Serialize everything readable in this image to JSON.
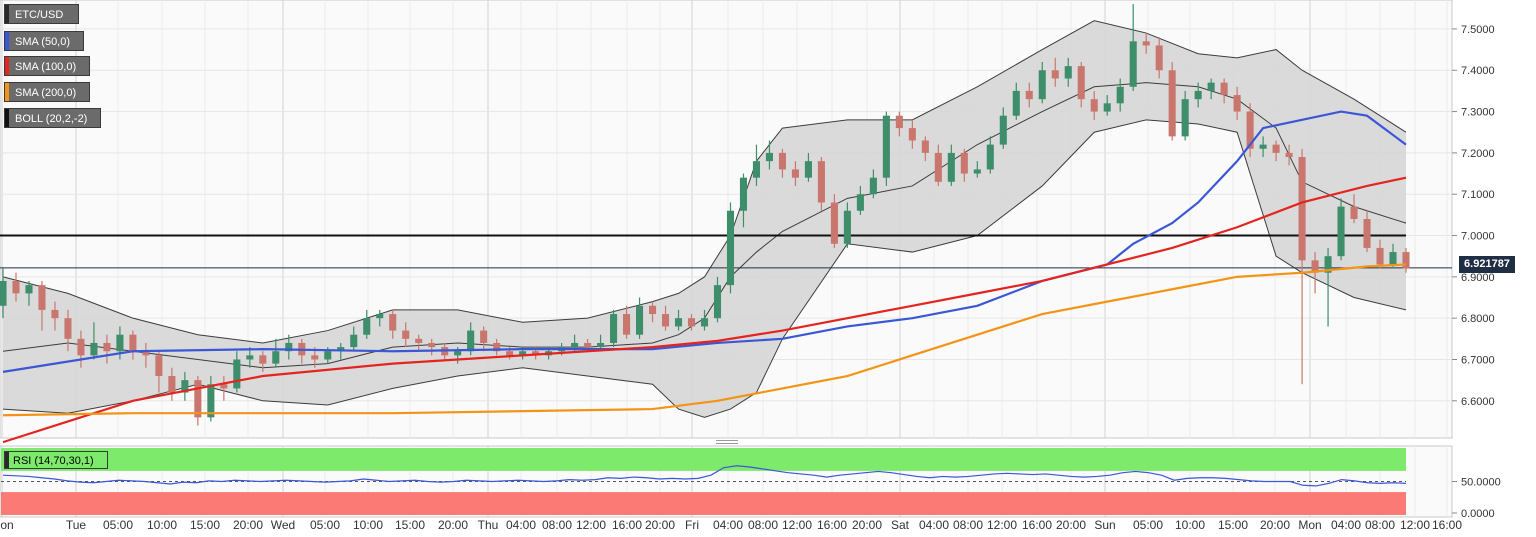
{
  "legend": [
    {
      "label": "ETC/USD",
      "color": "#6b6b6b"
    },
    {
      "label": "SMA (50,0)",
      "color": "#3a57d6"
    },
    {
      "label": "SMA (100,0)",
      "color": "#e52420"
    },
    {
      "label": "SMA (200,0)",
      "color": "#f39417"
    },
    {
      "label": "BOLL (20,2,-2)",
      "color": "#111111"
    }
  ],
  "rsi_label": "RSI (14,70,30,1)",
  "price_tag": "6.921787",
  "x_ticks": [
    "Mon",
    "Tue",
    "05:00",
    "10:00",
    "15:00",
    "20:00",
    "Wed",
    "05:00",
    "10:00",
    "15:00",
    "20:00",
    "Thu",
    "04:00",
    "08:00",
    "12:00",
    "16:00",
    "20:00",
    "Fri",
    "04:00",
    "08:00",
    "12:00",
    "16:00",
    "20:00",
    "Sat",
    "04:00",
    "08:00",
    "12:00",
    "16:00",
    "20:00",
    "Sun",
    "05:00",
    "10:00",
    "15:00",
    "20:00",
    "Mon",
    "04:00",
    "08:00",
    "12:00",
    "16:00"
  ],
  "chart_data": [
    {
      "type": "candlestick",
      "symbol": "ETC/USD",
      "y_ticks": [
        "6.6000",
        "6.7000",
        "6.8000",
        "6.9000",
        "7.0000",
        "7.1000",
        "7.2000",
        "7.3000",
        "7.4000",
        "7.5000"
      ],
      "ylim": [
        6.51,
        7.57
      ],
      "last_price": 6.921787,
      "horizontal_level": 7.0,
      "series": [
        {
          "name": "SMA (50,0)",
          "color": "#3a57d6",
          "x": [
            0,
            10,
            20,
            30,
            40,
            50,
            55,
            60,
            65,
            70,
            75,
            80,
            85,
            87,
            90,
            92,
            95,
            97,
            100,
            103,
            105,
            108
          ],
          "values": [
            6.67,
            6.72,
            6.725,
            6.72,
            6.725,
            6.725,
            6.74,
            6.75,
            6.78,
            6.8,
            6.83,
            6.89,
            6.93,
            6.98,
            7.03,
            7.08,
            7.18,
            7.26,
            7.28,
            7.3,
            7.29,
            7.22
          ]
        },
        {
          "name": "SMA (100,0)",
          "color": "#e52420",
          "x": [
            0,
            5,
            10,
            20,
            30,
            40,
            50,
            55,
            60,
            65,
            70,
            75,
            80,
            85,
            90,
            95,
            100,
            105,
            108
          ],
          "values": [
            6.5,
            6.55,
            6.6,
            6.66,
            6.69,
            6.71,
            6.73,
            6.745,
            6.77,
            6.8,
            6.83,
            6.86,
            6.89,
            6.93,
            6.97,
            7.02,
            7.08,
            7.12,
            7.14
          ]
        },
        {
          "name": "SMA (200,0)",
          "color": "#f39417",
          "x": [
            0,
            10,
            20,
            30,
            40,
            50,
            55,
            60,
            65,
            70,
            75,
            80,
            85,
            90,
            95,
            100,
            105,
            108
          ],
          "values": [
            6.565,
            6.57,
            6.57,
            6.57,
            6.575,
            6.58,
            6.6,
            6.63,
            6.66,
            6.71,
            6.76,
            6.81,
            6.84,
            6.87,
            6.9,
            6.91,
            6.925,
            6.93
          ]
        },
        {
          "name": "BOLL upper",
          "color": "#555555",
          "x": [
            0,
            5,
            10,
            15,
            20,
            25,
            30,
            35,
            40,
            45,
            50,
            52,
            54,
            56,
            58,
            60,
            65,
            70,
            75,
            80,
            84,
            88,
            92,
            95,
            98,
            100,
            104,
            108
          ],
          "values": [
            6.9,
            6.86,
            6.8,
            6.76,
            6.74,
            6.77,
            6.82,
            6.82,
            6.79,
            6.8,
            6.84,
            6.86,
            6.9,
            7.0,
            7.18,
            7.26,
            7.28,
            7.28,
            7.36,
            7.45,
            7.52,
            7.49,
            7.44,
            7.43,
            7.45,
            7.4,
            7.33,
            7.25
          ]
        },
        {
          "name": "BOLL middle",
          "color": "#555555",
          "x": [
            0,
            5,
            10,
            15,
            20,
            25,
            30,
            35,
            40,
            45,
            50,
            52,
            54,
            56,
            58,
            60,
            65,
            70,
            75,
            80,
            84,
            88,
            92,
            95,
            98,
            100,
            104,
            108
          ],
          "values": [
            6.72,
            6.74,
            6.72,
            6.7,
            6.68,
            6.69,
            6.73,
            6.74,
            6.73,
            6.73,
            6.74,
            6.76,
            6.8,
            6.9,
            6.96,
            7.01,
            7.09,
            7.12,
            7.22,
            7.3,
            7.36,
            7.37,
            7.36,
            7.33,
            7.26,
            7.13,
            7.07,
            7.03
          ]
        },
        {
          "name": "BOLL lower",
          "color": "#555555",
          "x": [
            0,
            5,
            10,
            15,
            20,
            25,
            30,
            35,
            40,
            45,
            50,
            52,
            54,
            56,
            58,
            60,
            65,
            70,
            75,
            80,
            84,
            88,
            92,
            95,
            98,
            100,
            104,
            108
          ],
          "values": [
            6.58,
            6.57,
            6.6,
            6.64,
            6.6,
            6.59,
            6.63,
            6.66,
            6.68,
            6.66,
            6.64,
            6.58,
            6.56,
            6.58,
            6.62,
            6.75,
            6.98,
            6.96,
            7.0,
            7.12,
            7.25,
            7.28,
            7.27,
            7.25,
            6.95,
            6.91,
            6.85,
            6.82
          ]
        }
      ],
      "candles": [
        [
          6.83,
          6.89,
          6.92,
          6.8
        ],
        [
          6.89,
          6.86,
          6.91,
          6.84
        ],
        [
          6.86,
          6.88,
          6.89,
          6.83
        ],
        [
          6.88,
          6.82,
          6.89,
          6.77
        ],
        [
          6.82,
          6.8,
          6.84,
          6.77
        ],
        [
          6.8,
          6.75,
          6.82,
          6.72
        ],
        [
          6.75,
          6.71,
          6.77,
          6.68
        ],
        [
          6.71,
          6.74,
          6.79,
          6.7
        ],
        [
          6.74,
          6.72,
          6.76,
          6.69
        ],
        [
          6.72,
          6.76,
          6.78,
          6.7
        ],
        [
          6.76,
          6.72,
          6.77,
          6.7
        ],
        [
          6.72,
          6.71,
          6.74,
          6.68
        ],
        [
          6.71,
          6.66,
          6.72,
          6.62
        ],
        [
          6.66,
          6.62,
          6.68,
          6.6
        ],
        [
          6.62,
          6.65,
          6.67,
          6.6
        ],
        [
          6.65,
          6.56,
          6.66,
          6.54
        ],
        [
          6.56,
          6.64,
          6.66,
          6.55
        ],
        [
          6.64,
          6.63,
          6.66,
          6.6
        ],
        [
          6.63,
          6.7,
          6.72,
          6.62
        ],
        [
          6.7,
          6.71,
          6.73,
          6.68
        ],
        [
          6.71,
          6.69,
          6.72,
          6.67
        ],
        [
          6.69,
          6.72,
          6.75,
          6.68
        ],
        [
          6.72,
          6.74,
          6.76,
          6.7
        ],
        [
          6.74,
          6.71,
          6.75,
          6.69
        ],
        [
          6.71,
          6.7,
          6.73,
          6.68
        ],
        [
          6.7,
          6.72,
          6.73,
          6.69
        ],
        [
          6.72,
          6.73,
          6.74,
          6.7
        ],
        [
          6.73,
          6.76,
          6.78,
          6.72
        ],
        [
          6.76,
          6.8,
          6.82,
          6.75
        ],
        [
          6.8,
          6.81,
          6.82,
          6.78
        ],
        [
          6.81,
          6.77,
          6.82,
          6.75
        ],
        [
          6.77,
          6.75,
          6.79,
          6.73
        ],
        [
          6.75,
          6.74,
          6.76,
          6.72
        ],
        [
          6.74,
          6.73,
          6.75,
          6.71
        ],
        [
          6.73,
          6.71,
          6.74,
          6.7
        ],
        [
          6.71,
          6.72,
          6.73,
          6.69
        ],
        [
          6.72,
          6.77,
          6.79,
          6.71
        ],
        [
          6.77,
          6.74,
          6.78,
          6.72
        ],
        [
          6.74,
          6.72,
          6.75,
          6.71
        ],
        [
          6.72,
          6.71,
          6.73,
          6.7
        ],
        [
          6.71,
          6.72,
          6.73,
          6.7
        ],
        [
          6.72,
          6.71,
          6.73,
          6.7
        ],
        [
          6.71,
          6.72,
          6.73,
          6.7
        ],
        [
          6.72,
          6.73,
          6.74,
          6.71
        ],
        [
          6.73,
          6.74,
          6.76,
          6.72
        ],
        [
          6.74,
          6.73,
          6.75,
          6.72
        ],
        [
          6.73,
          6.74,
          6.76,
          6.72
        ],
        [
          6.74,
          6.81,
          6.82,
          6.73
        ],
        [
          6.81,
          6.76,
          6.83,
          6.75
        ],
        [
          6.76,
          6.83,
          6.85,
          6.75
        ],
        [
          6.83,
          6.81,
          6.84,
          6.79
        ],
        [
          6.81,
          6.78,
          6.83,
          6.77
        ],
        [
          6.78,
          6.8,
          6.82,
          6.77
        ],
        [
          6.8,
          6.78,
          6.81,
          6.77
        ],
        [
          6.78,
          6.8,
          6.82,
          6.77
        ],
        [
          6.8,
          6.88,
          6.9,
          6.79
        ],
        [
          6.88,
          7.06,
          7.08,
          6.86
        ],
        [
          7.06,
          7.14,
          7.15,
          7.02
        ],
        [
          7.14,
          7.18,
          7.22,
          7.12
        ],
        [
          7.18,
          7.2,
          7.23,
          7.16
        ],
        [
          7.2,
          7.16,
          7.21,
          7.14
        ],
        [
          7.16,
          7.14,
          7.18,
          7.12
        ],
        [
          7.14,
          7.18,
          7.2,
          7.13
        ],
        [
          7.18,
          7.08,
          7.19,
          7.06
        ],
        [
          7.08,
          6.98,
          7.1,
          6.97
        ],
        [
          6.98,
          7.06,
          7.08,
          6.97
        ],
        [
          7.06,
          7.1,
          7.12,
          7.05
        ],
        [
          7.1,
          7.14,
          7.16,
          7.09
        ],
        [
          7.14,
          7.29,
          7.3,
          7.12
        ],
        [
          7.29,
          7.26,
          7.3,
          7.24
        ],
        [
          7.26,
          7.23,
          7.28,
          7.21
        ],
        [
          7.23,
          7.2,
          7.24,
          7.18
        ],
        [
          7.2,
          7.13,
          7.22,
          7.12
        ],
        [
          7.13,
          7.2,
          7.22,
          7.12
        ],
        [
          7.2,
          7.15,
          7.21,
          7.13
        ],
        [
          7.15,
          7.16,
          7.18,
          7.14
        ],
        [
          7.16,
          7.22,
          7.24,
          7.15
        ],
        [
          7.22,
          7.29,
          7.31,
          7.21
        ],
        [
          7.29,
          7.35,
          7.37,
          7.28
        ],
        [
          7.35,
          7.33,
          7.37,
          7.31
        ],
        [
          7.33,
          7.4,
          7.42,
          7.32
        ],
        [
          7.4,
          7.38,
          7.43,
          7.36
        ],
        [
          7.38,
          7.41,
          7.43,
          7.36
        ],
        [
          7.41,
          7.33,
          7.42,
          7.31
        ],
        [
          7.33,
          7.3,
          7.35,
          7.28
        ],
        [
          7.3,
          7.32,
          7.34,
          7.29
        ],
        [
          7.32,
          7.36,
          7.38,
          7.3
        ],
        [
          7.36,
          7.47,
          7.56,
          7.35
        ],
        [
          7.47,
          7.46,
          7.49,
          7.44
        ],
        [
          7.46,
          7.4,
          7.48,
          7.38
        ],
        [
          7.4,
          7.24,
          7.42,
          7.23
        ],
        [
          7.24,
          7.33,
          7.35,
          7.23
        ],
        [
          7.33,
          7.35,
          7.37,
          7.31
        ],
        [
          7.35,
          7.37,
          7.38,
          7.33
        ],
        [
          7.37,
          7.34,
          7.38,
          7.32
        ],
        [
          7.34,
          7.3,
          7.36,
          7.28
        ],
        [
          7.3,
          7.21,
          7.32,
          7.19
        ],
        [
          7.21,
          7.22,
          7.24,
          7.19
        ],
        [
          7.22,
          7.2,
          7.23,
          7.18
        ],
        [
          7.2,
          7.19,
          7.22,
          7.17
        ],
        [
          7.19,
          6.94,
          7.21,
          6.64
        ],
        [
          6.94,
          6.91,
          6.96,
          6.86
        ],
        [
          6.91,
          6.95,
          6.97,
          6.78
        ],
        [
          6.95,
          7.07,
          7.09,
          6.94
        ],
        [
          7.07,
          7.04,
          7.1,
          7.03
        ],
        [
          7.04,
          6.97,
          7.06,
          6.96
        ],
        [
          6.97,
          6.93,
          6.99,
          6.92
        ],
        [
          6.93,
          6.96,
          6.98,
          6.92
        ],
        [
          6.96,
          6.92,
          6.97,
          6.91
        ]
      ],
      "up_color": "#3e8e6b",
      "down_color": "#c9776e"
    },
    {
      "type": "line",
      "name": "RSI (14,70,30,1)",
      "y_ticks": [
        "50.0000",
        "0.0000"
      ],
      "ylim": [
        0,
        100
      ],
      "overbought": 70,
      "oversold": 30,
      "color": "#3a57d6",
      "values": [
        60,
        59,
        58,
        56,
        54,
        51,
        49,
        48,
        50,
        52,
        51,
        50,
        48,
        46,
        49,
        48,
        51,
        50,
        52,
        51,
        50,
        51,
        52,
        51,
        50,
        49,
        50,
        51,
        54,
        52,
        50,
        51,
        52,
        50,
        49,
        50,
        52,
        51,
        50,
        51,
        52,
        51,
        50,
        51,
        53,
        52,
        53,
        56,
        55,
        57,
        56,
        54,
        55,
        54,
        55,
        60,
        72,
        75,
        73,
        70,
        67,
        64,
        62,
        60,
        57,
        60,
        62,
        64,
        66,
        64,
        61,
        58,
        56,
        58,
        57,
        58,
        60,
        62,
        63,
        62,
        61,
        62,
        60,
        58,
        57,
        58,
        60,
        64,
        66,
        64,
        60,
        52,
        55,
        56,
        56,
        55,
        53,
        51,
        50,
        50,
        50,
        44,
        43,
        47,
        53,
        51,
        48,
        47,
        48,
        47
      ]
    }
  ]
}
